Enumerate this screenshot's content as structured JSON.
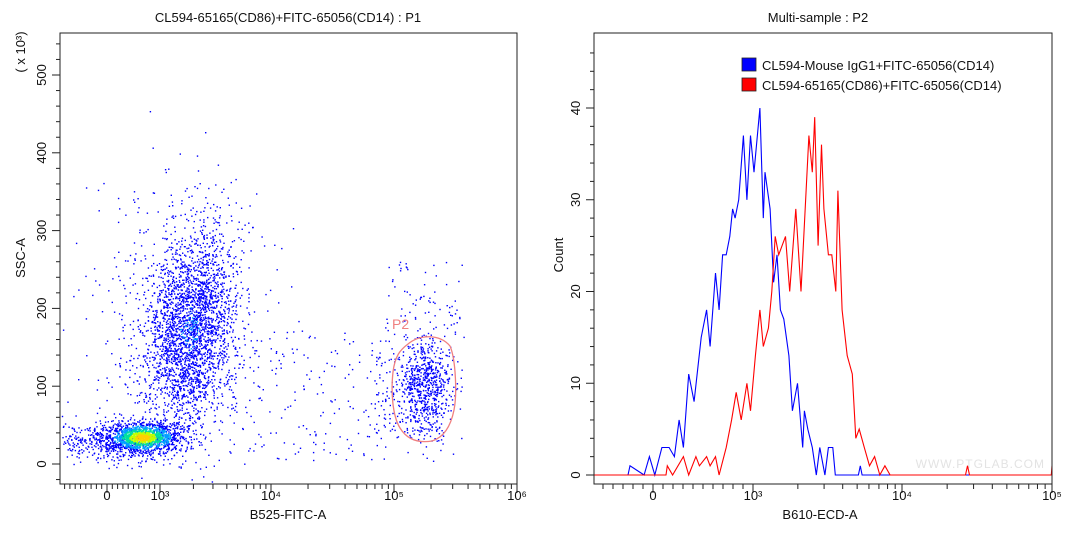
{
  "chart_data": [
    {
      "type": "scatter",
      "title": "CL594-65165(CD86)+FITC-65056(CD14) : P1",
      "xlabel": "B525-FITC-A",
      "ylabel": "SSC-A",
      "ylabel_multiplier": "( x 10³)",
      "xscale": "biexponential",
      "xlim": [
        -900,
        1000000
      ],
      "ylim": [
        -10,
        550
      ],
      "xticks": [
        {
          "value": 0,
          "label": "0"
        },
        {
          "value": 1000,
          "label": "10³"
        },
        {
          "value": 10000,
          "label": "10⁴"
        },
        {
          "value": 100000,
          "label": "10⁵"
        },
        {
          "value": 1000000,
          "label": "10⁶"
        }
      ],
      "yticks": [
        {
          "value": 0,
          "label": "0"
        },
        {
          "value": 100,
          "label": "100"
        },
        {
          "value": 200,
          "label": "200"
        },
        {
          "value": 300,
          "label": "300"
        },
        {
          "value": 400,
          "label": "400"
        },
        {
          "value": 500,
          "label": "500"
        }
      ],
      "point_color": "#0000ff",
      "density_colors": [
        "#0000ff",
        "#00a0ff",
        "#00e0a0",
        "#c0ff00",
        "#ffd000"
      ],
      "gate": {
        "name": "P2",
        "color": "#f08080",
        "x_range": [
          100000,
          350000
        ],
        "y_range": [
          30,
          165
        ]
      },
      "grid": false
    },
    {
      "type": "line",
      "title": "Multi-sample : P2",
      "xlabel": "B610-ECD-A",
      "ylabel": "Count",
      "xscale": "biexponential",
      "xlim": [
        -600,
        100000
      ],
      "ylim": [
        0,
        47
      ],
      "xticks": [
        {
          "value": 0,
          "label": "0"
        },
        {
          "value": 1000,
          "label": "10³"
        },
        {
          "value": 10000,
          "label": "10⁴"
        },
        {
          "value": 100000,
          "label": "10⁵"
        }
      ],
      "yticks": [
        {
          "value": 0,
          "label": "0"
        },
        {
          "value": 10,
          "label": "10"
        },
        {
          "value": 20,
          "label": "20"
        },
        {
          "value": 30,
          "label": "30"
        },
        {
          "value": 40,
          "label": "40"
        }
      ],
      "legend": "top-right",
      "grid": false,
      "watermark": "WWW.PTGLAB.COM",
      "series": [
        {
          "name": "CL594-Mouse IgG1+FITC-65056(CD14)",
          "color": "#0000ff",
          "x": [
            -600,
            -250,
            -230,
            -89,
            -36,
            18,
            89,
            161,
            214,
            261,
            304,
            357,
            411,
            482,
            536,
            571,
            625,
            661,
            696,
            732,
            768,
            796,
            821,
            857,
            904,
            939,
            975,
            1016,
            1112,
            1172,
            1203,
            1303,
            1374,
            1448,
            1527,
            1610,
            1742,
            1837,
            1989,
            2154,
            2213,
            2333,
            2500,
            2661,
            2807,
            3040,
            3206,
            3433,
            3565,
            3855,
            5100,
            5248,
            5400,
            100000
          ],
          "y": [
            0,
            0,
            1,
            0,
            2,
            0,
            3,
            3,
            2,
            6,
            3,
            11,
            8,
            15,
            18,
            14,
            22,
            18,
            24,
            24,
            26,
            29,
            28,
            30,
            37,
            30,
            37,
            33,
            40,
            28,
            33,
            29,
            21,
            24,
            18,
            17,
            13,
            7,
            10,
            3,
            7,
            5,
            3,
            0,
            3,
            0,
            3,
            3,
            0,
            0,
            0,
            1,
            0,
            0
          ]
        },
        {
          "name": "CL594-65165(CD86)+FITC-65056(CD14)",
          "color": "#ff0000",
          "x": [
            -600,
            130,
            143,
            196,
            304,
            357,
            429,
            464,
            536,
            571,
            625,
            661,
            732,
            786,
            832,
            882,
            939,
            975,
            1037,
            1112,
            1172,
            1268,
            1338,
            1410,
            1487,
            1652,
            1762,
            1937,
            2099,
            2371,
            2500,
            2594,
            2735,
            2884,
            2992,
            3206,
            3379,
            3597,
            3715,
            3963,
            4288,
            4642,
            4897,
            5164,
            5585,
            6051,
            6547,
            7096,
            7674,
            8318,
            26500,
            27350,
            28200,
            99000,
            100000
          ],
          "y": [
            0,
            0,
            1,
            0,
            2,
            0,
            2,
            1,
            2,
            1,
            2,
            0,
            3,
            6,
            9,
            6,
            10,
            7,
            13,
            18,
            14,
            16,
            20,
            26,
            24,
            26,
            20,
            29,
            20,
            37,
            33,
            39,
            25,
            36,
            29,
            24,
            24,
            20,
            31,
            18,
            13,
            11,
            4,
            5,
            3,
            1,
            2,
            0,
            1,
            0,
            0,
            1,
            0,
            0,
            1
          ]
        }
      ]
    }
  ]
}
